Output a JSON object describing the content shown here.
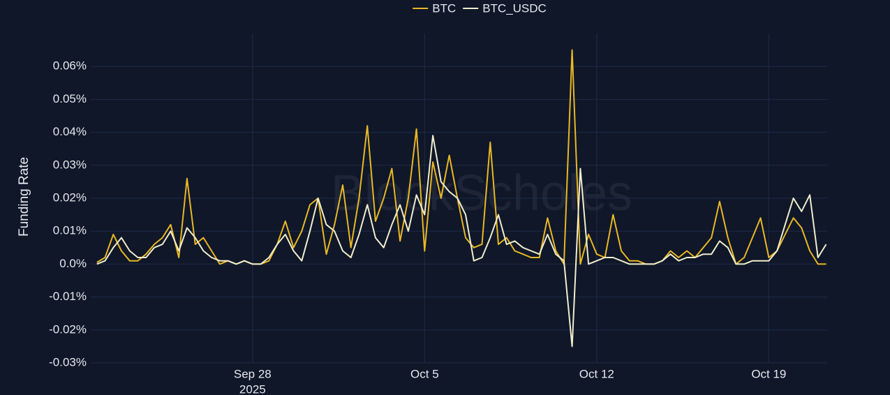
{
  "chart_data": {
    "type": "line",
    "y_axis_label": "Funding Rate",
    "watermark": "BlockScholes",
    "x_year_label": "2025",
    "x": [
      "2025-09-21T16:00",
      "2025-09-22T00:00",
      "2025-09-22T08:00",
      "2025-09-22T16:00",
      "2025-09-23T00:00",
      "2025-09-23T08:00",
      "2025-09-23T16:00",
      "2025-09-24T00:00",
      "2025-09-24T08:00",
      "2025-09-24T16:00",
      "2025-09-25T00:00",
      "2025-09-25T08:00",
      "2025-09-25T16:00",
      "2025-09-26T00:00",
      "2025-09-26T08:00",
      "2025-09-26T16:00",
      "2025-09-27T00:00",
      "2025-09-27T08:00",
      "2025-09-27T16:00",
      "2025-09-28T00:00",
      "2025-09-28T08:00",
      "2025-09-28T16:00",
      "2025-09-29T00:00",
      "2025-09-29T08:00",
      "2025-09-29T16:00",
      "2025-09-30T00:00",
      "2025-09-30T08:00",
      "2025-09-30T16:00",
      "2025-10-01T00:00",
      "2025-10-01T08:00",
      "2025-10-01T16:00",
      "2025-10-02T00:00",
      "2025-10-02T08:00",
      "2025-10-02T16:00",
      "2025-10-03T00:00",
      "2025-10-03T08:00",
      "2025-10-03T16:00",
      "2025-10-04T00:00",
      "2025-10-04T08:00",
      "2025-10-04T16:00",
      "2025-10-05T00:00",
      "2025-10-05T08:00",
      "2025-10-05T16:00",
      "2025-10-06T00:00",
      "2025-10-06T08:00",
      "2025-10-06T16:00",
      "2025-10-07T00:00",
      "2025-10-07T08:00",
      "2025-10-07T16:00",
      "2025-10-08T00:00",
      "2025-10-08T08:00",
      "2025-10-08T16:00",
      "2025-10-09T00:00",
      "2025-10-09T08:00",
      "2025-10-09T16:00",
      "2025-10-10T00:00",
      "2025-10-10T08:00",
      "2025-10-10T16:00",
      "2025-10-11T00:00",
      "2025-10-11T08:00",
      "2025-10-11T16:00",
      "2025-10-12T00:00",
      "2025-10-12T08:00",
      "2025-10-12T16:00",
      "2025-10-13T00:00",
      "2025-10-13T08:00",
      "2025-10-13T16:00",
      "2025-10-14T00:00",
      "2025-10-14T08:00",
      "2025-10-14T16:00",
      "2025-10-15T00:00",
      "2025-10-15T08:00",
      "2025-10-15T16:00",
      "2025-10-16T00:00",
      "2025-10-16T08:00",
      "2025-10-16T16:00",
      "2025-10-17T00:00",
      "2025-10-17T08:00",
      "2025-10-17T16:00",
      "2025-10-18T00:00",
      "2025-10-18T08:00",
      "2025-10-18T16:00",
      "2025-10-19T00:00",
      "2025-10-19T08:00",
      "2025-10-19T16:00",
      "2025-10-20T00:00",
      "2025-10-20T08:00",
      "2025-10-20T16:00",
      "2025-10-21T00:00",
      "2025-10-21T08:00"
    ],
    "series": [
      {
        "name": "BTC",
        "color": "#e9b824",
        "values": [
          0.0005,
          0.002,
          0.009,
          0.004,
          0.001,
          0.001,
          0.003,
          0.006,
          0.008,
          0.012,
          0.002,
          0.026,
          0.006,
          0.008,
          0.004,
          0.0,
          0.001,
          0.0,
          0.001,
          0.0,
          0.0,
          0.001,
          0.006,
          0.013,
          0.005,
          0.01,
          0.018,
          0.02,
          0.003,
          0.012,
          0.024,
          0.005,
          0.02,
          0.042,
          0.013,
          0.02,
          0.029,
          0.007,
          0.02,
          0.041,
          0.004,
          0.031,
          0.02,
          0.033,
          0.02,
          0.008,
          0.005,
          0.006,
          0.037,
          0.006,
          0.008,
          0.004,
          0.003,
          0.002,
          0.002,
          0.014,
          0.004,
          0.0,
          0.065,
          0.0,
          0.009,
          0.003,
          0.002,
          0.015,
          0.004,
          0.001,
          0.001,
          0.0,
          0.0,
          0.001,
          0.004,
          0.002,
          0.004,
          0.002,
          0.005,
          0.008,
          0.019,
          0.008,
          0.0,
          0.002,
          0.008,
          0.014,
          0.002,
          0.004,
          0.009,
          0.014,
          0.011,
          0.004,
          0.0,
          0.0
        ]
      },
      {
        "name": "BTC_USDC",
        "color": "#f1edcc",
        "values": [
          0.0,
          0.001,
          0.005,
          0.008,
          0.004,
          0.002,
          0.002,
          0.005,
          0.006,
          0.01,
          0.004,
          0.011,
          0.008,
          0.004,
          0.002,
          0.001,
          0.001,
          0.0,
          0.001,
          0.0,
          0.0,
          0.002,
          0.006,
          0.009,
          0.004,
          0.001,
          0.01,
          0.02,
          0.012,
          0.01,
          0.004,
          0.002,
          0.009,
          0.018,
          0.008,
          0.005,
          0.012,
          0.018,
          0.01,
          0.021,
          0.015,
          0.039,
          0.025,
          0.022,
          0.02,
          0.015,
          0.001,
          0.002,
          0.008,
          0.015,
          0.006,
          0.007,
          0.005,
          0.004,
          0.003,
          0.009,
          0.003,
          0.001,
          -0.025,
          0.029,
          0.0,
          0.001,
          0.002,
          0.002,
          0.001,
          0.0,
          0.0,
          0.0,
          0.0,
          0.001,
          0.003,
          0.001,
          0.002,
          0.002,
          0.003,
          0.003,
          0.007,
          0.005,
          0.0,
          0.0,
          0.001,
          0.001,
          0.001,
          0.004,
          0.012,
          0.02,
          0.016,
          0.021,
          0.002,
          0.006
        ]
      }
    ],
    "xlim": [
      "2025-09-21T10:00",
      "2025-10-21T09:00"
    ],
    "xticks": [
      {
        "value": "2025-09-28T00:00",
        "label": "Sep 28"
      },
      {
        "value": "2025-10-05T00:00",
        "label": "Oct 5"
      },
      {
        "value": "2025-10-12T00:00",
        "label": "Oct 12"
      },
      {
        "value": "2025-10-19T00:00",
        "label": "Oct 19"
      }
    ],
    "ylim": [
      -0.03,
      0.07
    ],
    "yticks": [
      {
        "value": -0.03,
        "label": "-0.03%"
      },
      {
        "value": -0.02,
        "label": "-0.02%"
      },
      {
        "value": -0.01,
        "label": "-0.01%"
      },
      {
        "value": 0,
        "label": "0.0%"
      },
      {
        "value": 0.01,
        "label": "0.01%"
      },
      {
        "value": 0.02,
        "label": "0.02%"
      },
      {
        "value": 0.03,
        "label": "0.03%"
      },
      {
        "value": 0.04,
        "label": "0.04%"
      },
      {
        "value": 0.05,
        "label": "0.05%"
      },
      {
        "value": 0.06,
        "label": "0.06%"
      }
    ],
    "grid": true,
    "legend": "top"
  }
}
